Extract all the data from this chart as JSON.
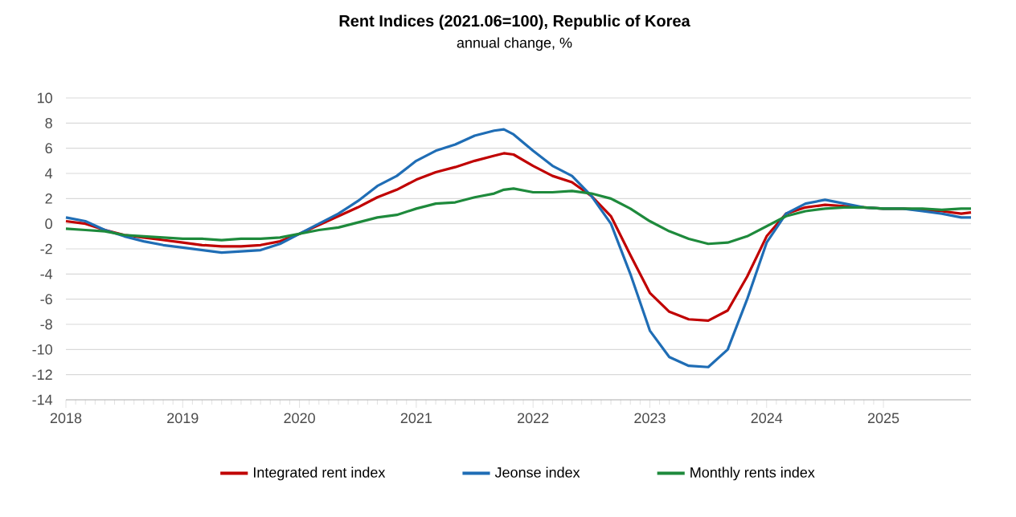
{
  "chart_data": {
    "type": "line",
    "title": "Rent Indices (2021.06=100), Republic of Korea",
    "subtitle": "annual change, %",
    "x": [
      "2018-01",
      "2018-03",
      "2018-05",
      "2018-07",
      "2018-09",
      "2018-11",
      "2019-01",
      "2019-03",
      "2019-05",
      "2019-07",
      "2019-09",
      "2019-11",
      "2020-01",
      "2020-03",
      "2020-05",
      "2020-07",
      "2020-09",
      "2020-11",
      "2021-01",
      "2021-03",
      "2021-05",
      "2021-07",
      "2021-09",
      "2021-10",
      "2021-11",
      "2022-01",
      "2022-03",
      "2022-05",
      "2022-07",
      "2022-09",
      "2022-11",
      "2023-01",
      "2023-03",
      "2023-05",
      "2023-07",
      "2023-09",
      "2023-11",
      "2024-01",
      "2024-03",
      "2024-05",
      "2024-07",
      "2024-09",
      "2024-11",
      "2025-01",
      "2025-03",
      "2025-05",
      "2025-07",
      "2025-09",
      "2025-10"
    ],
    "series": [
      {
        "name": "Integrated rent index",
        "color": "#c00000",
        "values": [
          0.2,
          0.0,
          -0.5,
          -0.9,
          -1.1,
          -1.3,
          -1.5,
          -1.7,
          -1.8,
          -1.8,
          -1.7,
          -1.4,
          -0.8,
          -0.1,
          0.6,
          1.3,
          2.1,
          2.7,
          3.5,
          4.1,
          4.5,
          5.0,
          5.4,
          5.6,
          5.5,
          4.6,
          3.8,
          3.3,
          2.2,
          0.6,
          -2.5,
          -5.5,
          -7.0,
          -7.6,
          -7.7,
          -6.9,
          -4.2,
          -1.0,
          0.8,
          1.3,
          1.5,
          1.4,
          1.3,
          1.2,
          1.2,
          1.1,
          1.0,
          0.8,
          0.9
        ]
      },
      {
        "name": "Jeonse index",
        "color": "#1f6db5",
        "values": [
          0.5,
          0.2,
          -0.5,
          -1.0,
          -1.4,
          -1.7,
          -1.9,
          -2.1,
          -2.3,
          -2.2,
          -2.1,
          -1.6,
          -0.8,
          0.0,
          0.8,
          1.8,
          3.0,
          3.8,
          5.0,
          5.8,
          6.3,
          7.0,
          7.4,
          7.5,
          7.1,
          5.8,
          4.6,
          3.8,
          2.2,
          0.0,
          -4.0,
          -8.5,
          -10.6,
          -11.3,
          -11.4,
          -10.0,
          -6.0,
          -1.5,
          0.8,
          1.6,
          1.9,
          1.6,
          1.3,
          1.2,
          1.2,
          1.0,
          0.8,
          0.5,
          0.5
        ]
      },
      {
        "name": "Monthly rents index",
        "color": "#1e8a3c",
        "values": [
          -0.4,
          -0.5,
          -0.6,
          -0.9,
          -1.0,
          -1.1,
          -1.2,
          -1.2,
          -1.3,
          -1.2,
          -1.2,
          -1.1,
          -0.8,
          -0.5,
          -0.3,
          0.1,
          0.5,
          0.7,
          1.2,
          1.6,
          1.7,
          2.1,
          2.4,
          2.7,
          2.8,
          2.5,
          2.5,
          2.6,
          2.4,
          2.0,
          1.2,
          0.2,
          -0.6,
          -1.2,
          -1.6,
          -1.5,
          -1.0,
          -0.2,
          0.6,
          1.0,
          1.2,
          1.3,
          1.3,
          1.2,
          1.2,
          1.2,
          1.1,
          1.2,
          1.2
        ]
      }
    ],
    "xlim": [
      "2018-01",
      "2025-10"
    ],
    "xticks": [
      "2018",
      "2019",
      "2020",
      "2021",
      "2022",
      "2023",
      "2024",
      "2025"
    ],
    "ylim": [
      -14,
      10
    ],
    "yticks": [
      -14,
      -12,
      -10,
      -8,
      -6,
      -4,
      -2,
      0,
      2,
      4,
      6,
      8,
      10
    ],
    "grid": "y",
    "legend": "bottom",
    "marker": "none",
    "line_style": "solid"
  }
}
